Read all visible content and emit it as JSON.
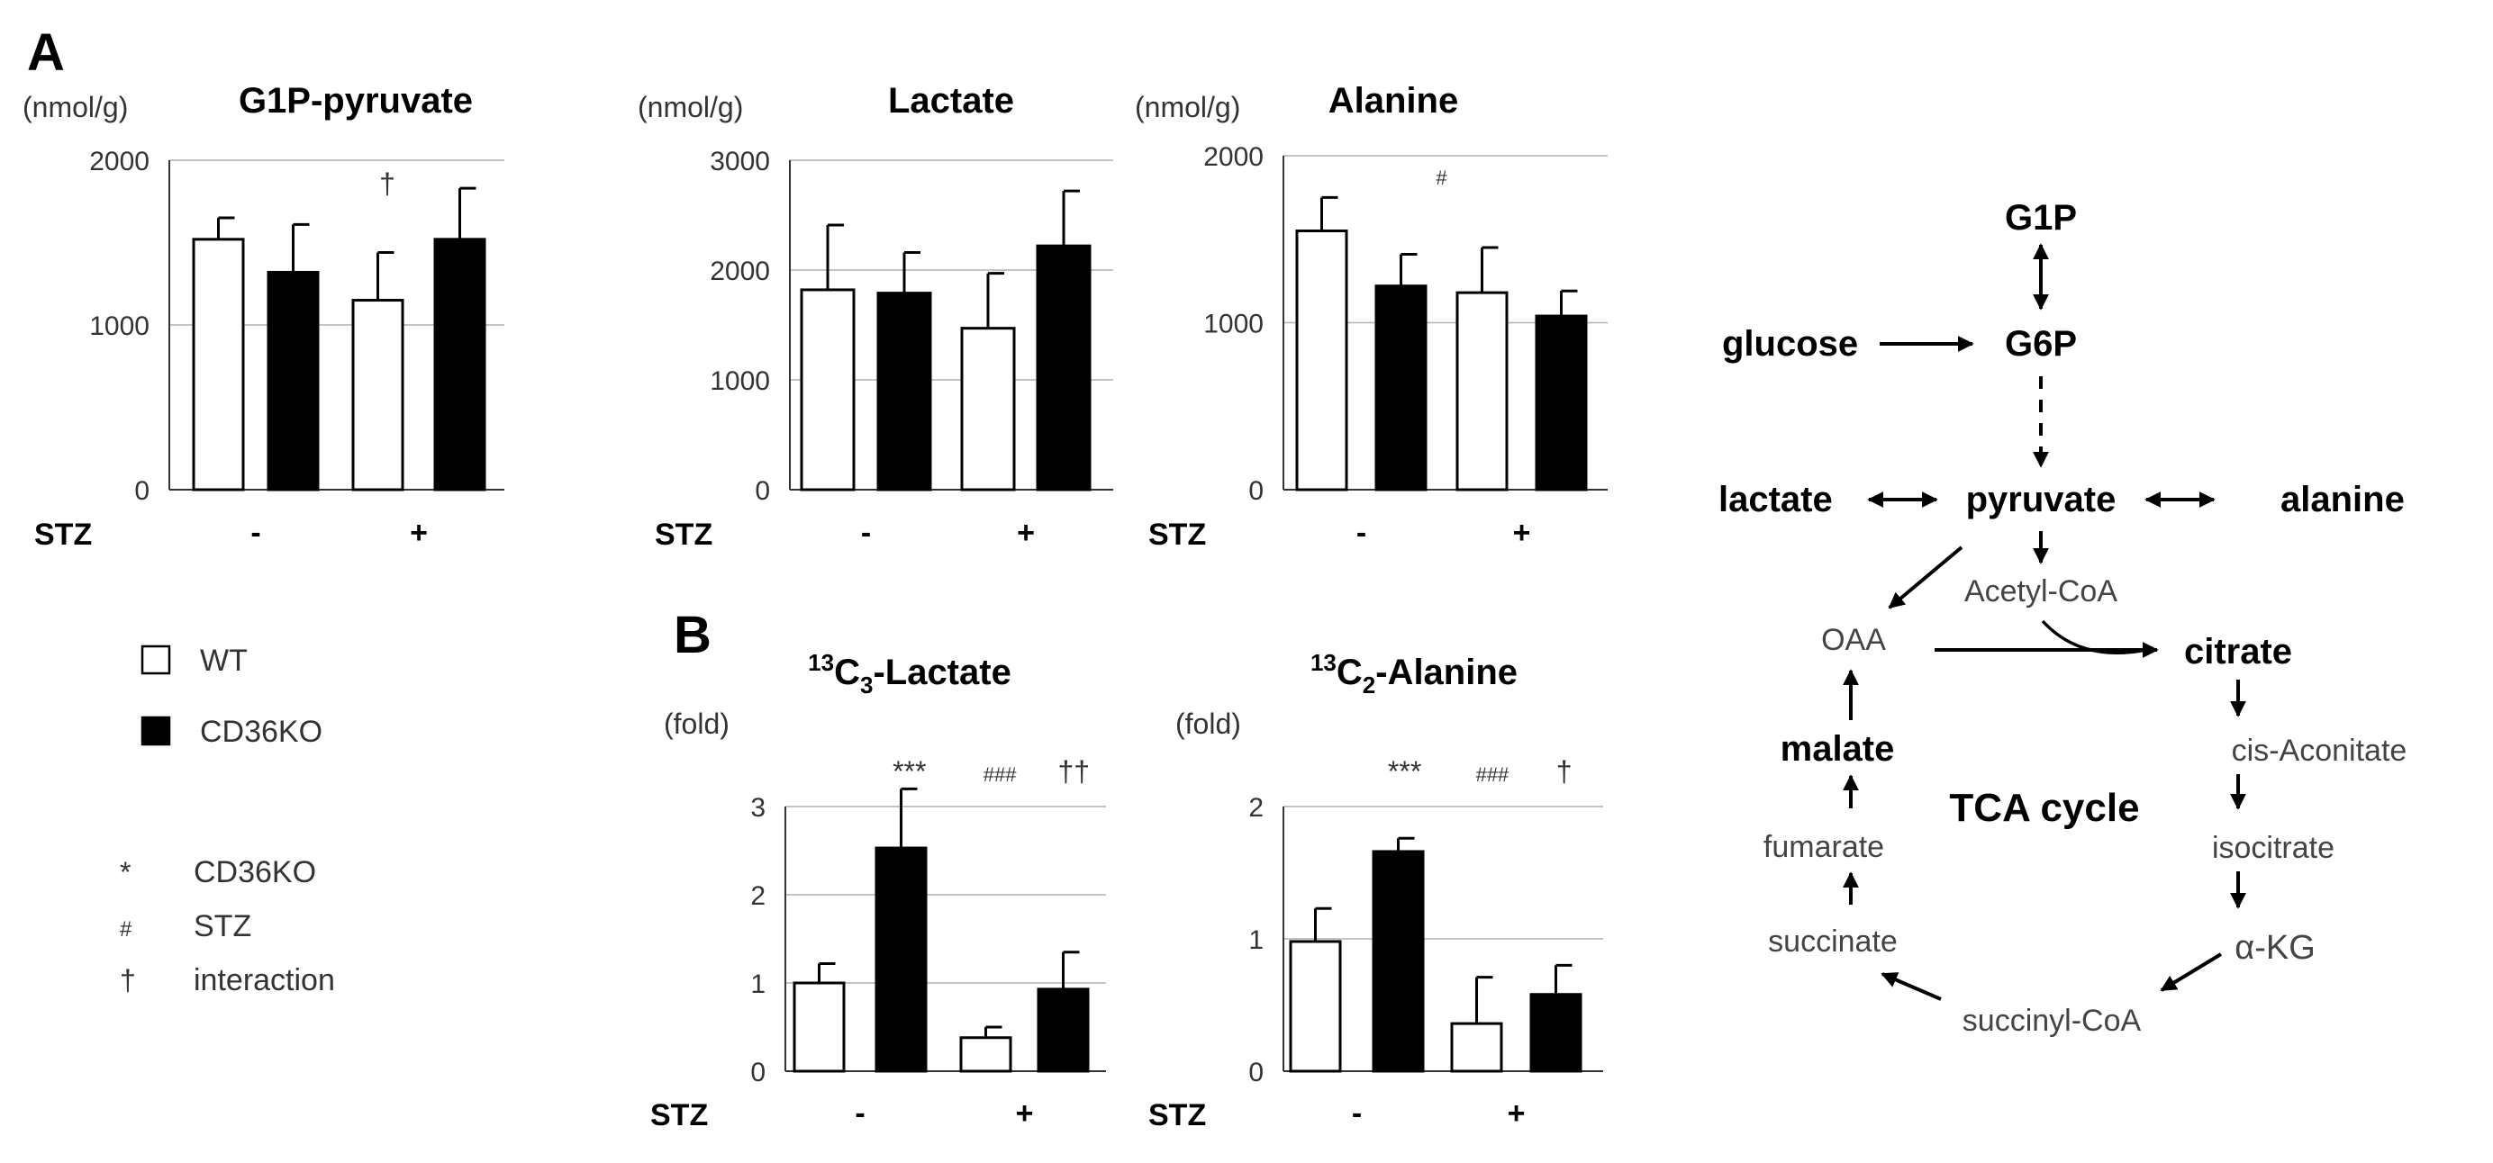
{
  "panel_labels": {
    "a": "A",
    "b": "B"
  },
  "stz_label": "STZ",
  "stz_minus": "-",
  "stz_plus": "+",
  "legend": {
    "wt": "WT",
    "ko": "CD36KO",
    "sym_ko": "*",
    "sym_ko_label": "CD36KO",
    "sym_stz": "#",
    "sym_stz_label": "STZ",
    "sym_int": "†",
    "sym_int_label": "interaction"
  },
  "colors": {
    "wt": "#ffffff",
    "ko": "#000000",
    "grid": "#b0b0b0",
    "text": "#000000"
  },
  "chart_data": [
    {
      "type": "bar",
      "title": "G1P-pyruvate",
      "ylabel": "(nmol/g)",
      "ylim": [
        0,
        2000
      ],
      "yticks": [
        0,
        1000,
        2000
      ],
      "groups": [
        "STZ -",
        "STZ +"
      ],
      "series": [
        {
          "name": "WT",
          "values": [
            1520,
            1150
          ],
          "errors": [
            130,
            290
          ]
        },
        {
          "name": "CD36KO",
          "values": [
            1320,
            1520
          ],
          "errors": [
            290,
            310
          ]
        }
      ],
      "annotations": [
        {
          "text": "†",
          "group": 1
        }
      ]
    },
    {
      "type": "bar",
      "title": "Lactate",
      "ylabel": "(nmol/g)",
      "ylim": [
        0,
        3000
      ],
      "yticks": [
        0,
        1000,
        2000,
        3000
      ],
      "groups": [
        "STZ -",
        "STZ +"
      ],
      "series": [
        {
          "name": "WT",
          "values": [
            1820,
            1470
          ],
          "errors": [
            590,
            500
          ]
        },
        {
          "name": "CD36KO",
          "values": [
            1790,
            2220
          ],
          "errors": [
            370,
            500
          ]
        }
      ],
      "annotations": []
    },
    {
      "type": "bar",
      "title": "Alanine",
      "ylabel": "(nmol/g)",
      "ylim": [
        0,
        2000
      ],
      "yticks": [
        0,
        1000,
        2000
      ],
      "groups": [
        "STZ -",
        "STZ +"
      ],
      "series": [
        {
          "name": "WT",
          "values": [
            1550,
            1180
          ],
          "errors": [
            200,
            270
          ]
        },
        {
          "name": "CD36KO",
          "values": [
            1220,
            1040
          ],
          "errors": [
            190,
            150
          ]
        }
      ],
      "annotations": [
        {
          "text": "#",
          "group": 0.5
        }
      ]
    },
    {
      "type": "bar",
      "title": "13C3-Lactate",
      "title_mass": "13",
      "title_prefix": "C",
      "title_sub": "3",
      "title_suffix": "-Lactate",
      "ylabel": "(fold)",
      "ylim": [
        0,
        3
      ],
      "yticks": [
        0,
        1,
        2,
        3
      ],
      "groups": [
        "STZ -",
        "STZ +"
      ],
      "series": [
        {
          "name": "WT",
          "values": [
            1.0,
            0.38
          ],
          "errors": [
            0.22,
            0.12
          ]
        },
        {
          "name": "CD36KO",
          "values": [
            2.53,
            0.93
          ],
          "errors": [
            0.67,
            0.42
          ]
        }
      ],
      "annotations": [
        {
          "text": "***",
          "group": 0.3
        },
        {
          "text": "###",
          "group": 0.85
        },
        {
          "text": "††",
          "group": 1.3
        }
      ]
    },
    {
      "type": "bar",
      "title": "13C2-Alanine",
      "title_mass": "13",
      "title_prefix": "C",
      "title_sub": "2",
      "title_suffix": "-Alanine",
      "ylabel": "(fold)",
      "ylim": [
        0,
        2
      ],
      "yticks": [
        0,
        1,
        2
      ],
      "groups": [
        "STZ -",
        "STZ +"
      ],
      "series": [
        {
          "name": "WT",
          "values": [
            0.98,
            0.36
          ],
          "errors": [
            0.25,
            0.35
          ]
        },
        {
          "name": "CD36KO",
          "values": [
            1.66,
            0.58
          ],
          "errors": [
            0.1,
            0.22
          ]
        }
      ],
      "annotations": [
        {
          "text": "***",
          "group": 0.3
        },
        {
          "text": "###",
          "group": 0.85
        },
        {
          "text": "†",
          "group": 1.3
        }
      ]
    }
  ],
  "pathway": {
    "g1p": "G1P",
    "glucose": "glucose",
    "g6p": "G6P",
    "lactate": "lactate",
    "pyruvate": "pyruvate",
    "alanine": "alanine",
    "acetyl_coa": "Acetyl-CoA",
    "oaa": "OAA",
    "citrate": "citrate",
    "malate": "malate",
    "cis_aconitate": "cis-Aconitate",
    "tca_cycle": "TCA cycle",
    "fumarate": "fumarate",
    "isocitrate": "isocitrate",
    "succinate": "succinate",
    "akg": "α-KG",
    "succinyl_coa": "succinyl-CoA"
  }
}
